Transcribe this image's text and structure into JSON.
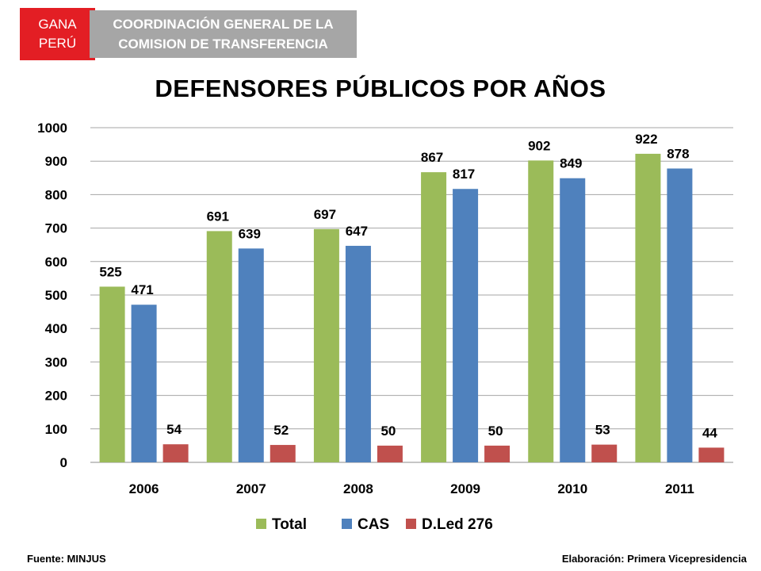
{
  "header": {
    "badge_line1": "GANA",
    "badge_line2": "PERÚ",
    "org_line1": "COORDINACIÓN GENERAL DE LA",
    "org_line2": "COMISION DE TRANSFERENCIA"
  },
  "footer": {
    "source": "Fuente: MINJUS",
    "credit": "Elaboración: Primera Vicepresidencia"
  },
  "colors": {
    "brand_red": "#e31e24",
    "brand_gray": "#a6a6a6"
  },
  "chart_data": {
    "type": "bar",
    "title": "DEFENSORES PÚBLICOS POR AÑOS",
    "xlabel": "",
    "ylabel": "",
    "categories": [
      "2006",
      "2007",
      "2008",
      "2009",
      "2010",
      "2011"
    ],
    "series": [
      {
        "name": "Total",
        "color": "#9bbb59",
        "values": [
          525,
          691,
          697,
          867,
          902,
          922
        ]
      },
      {
        "name": "CAS",
        "color": "#4f81bd",
        "values": [
          471,
          639,
          647,
          817,
          849,
          878
        ]
      },
      {
        "name": "D.Led 276",
        "color": "#c0504d",
        "values": [
          54,
          52,
          50,
          50,
          53,
          44
        ]
      }
    ],
    "ylim": [
      0,
      1000
    ],
    "yticks": [
      0,
      100,
      200,
      300,
      400,
      500,
      600,
      700,
      800,
      900,
      1000
    ],
    "grid": true,
    "legend": "bottom"
  }
}
